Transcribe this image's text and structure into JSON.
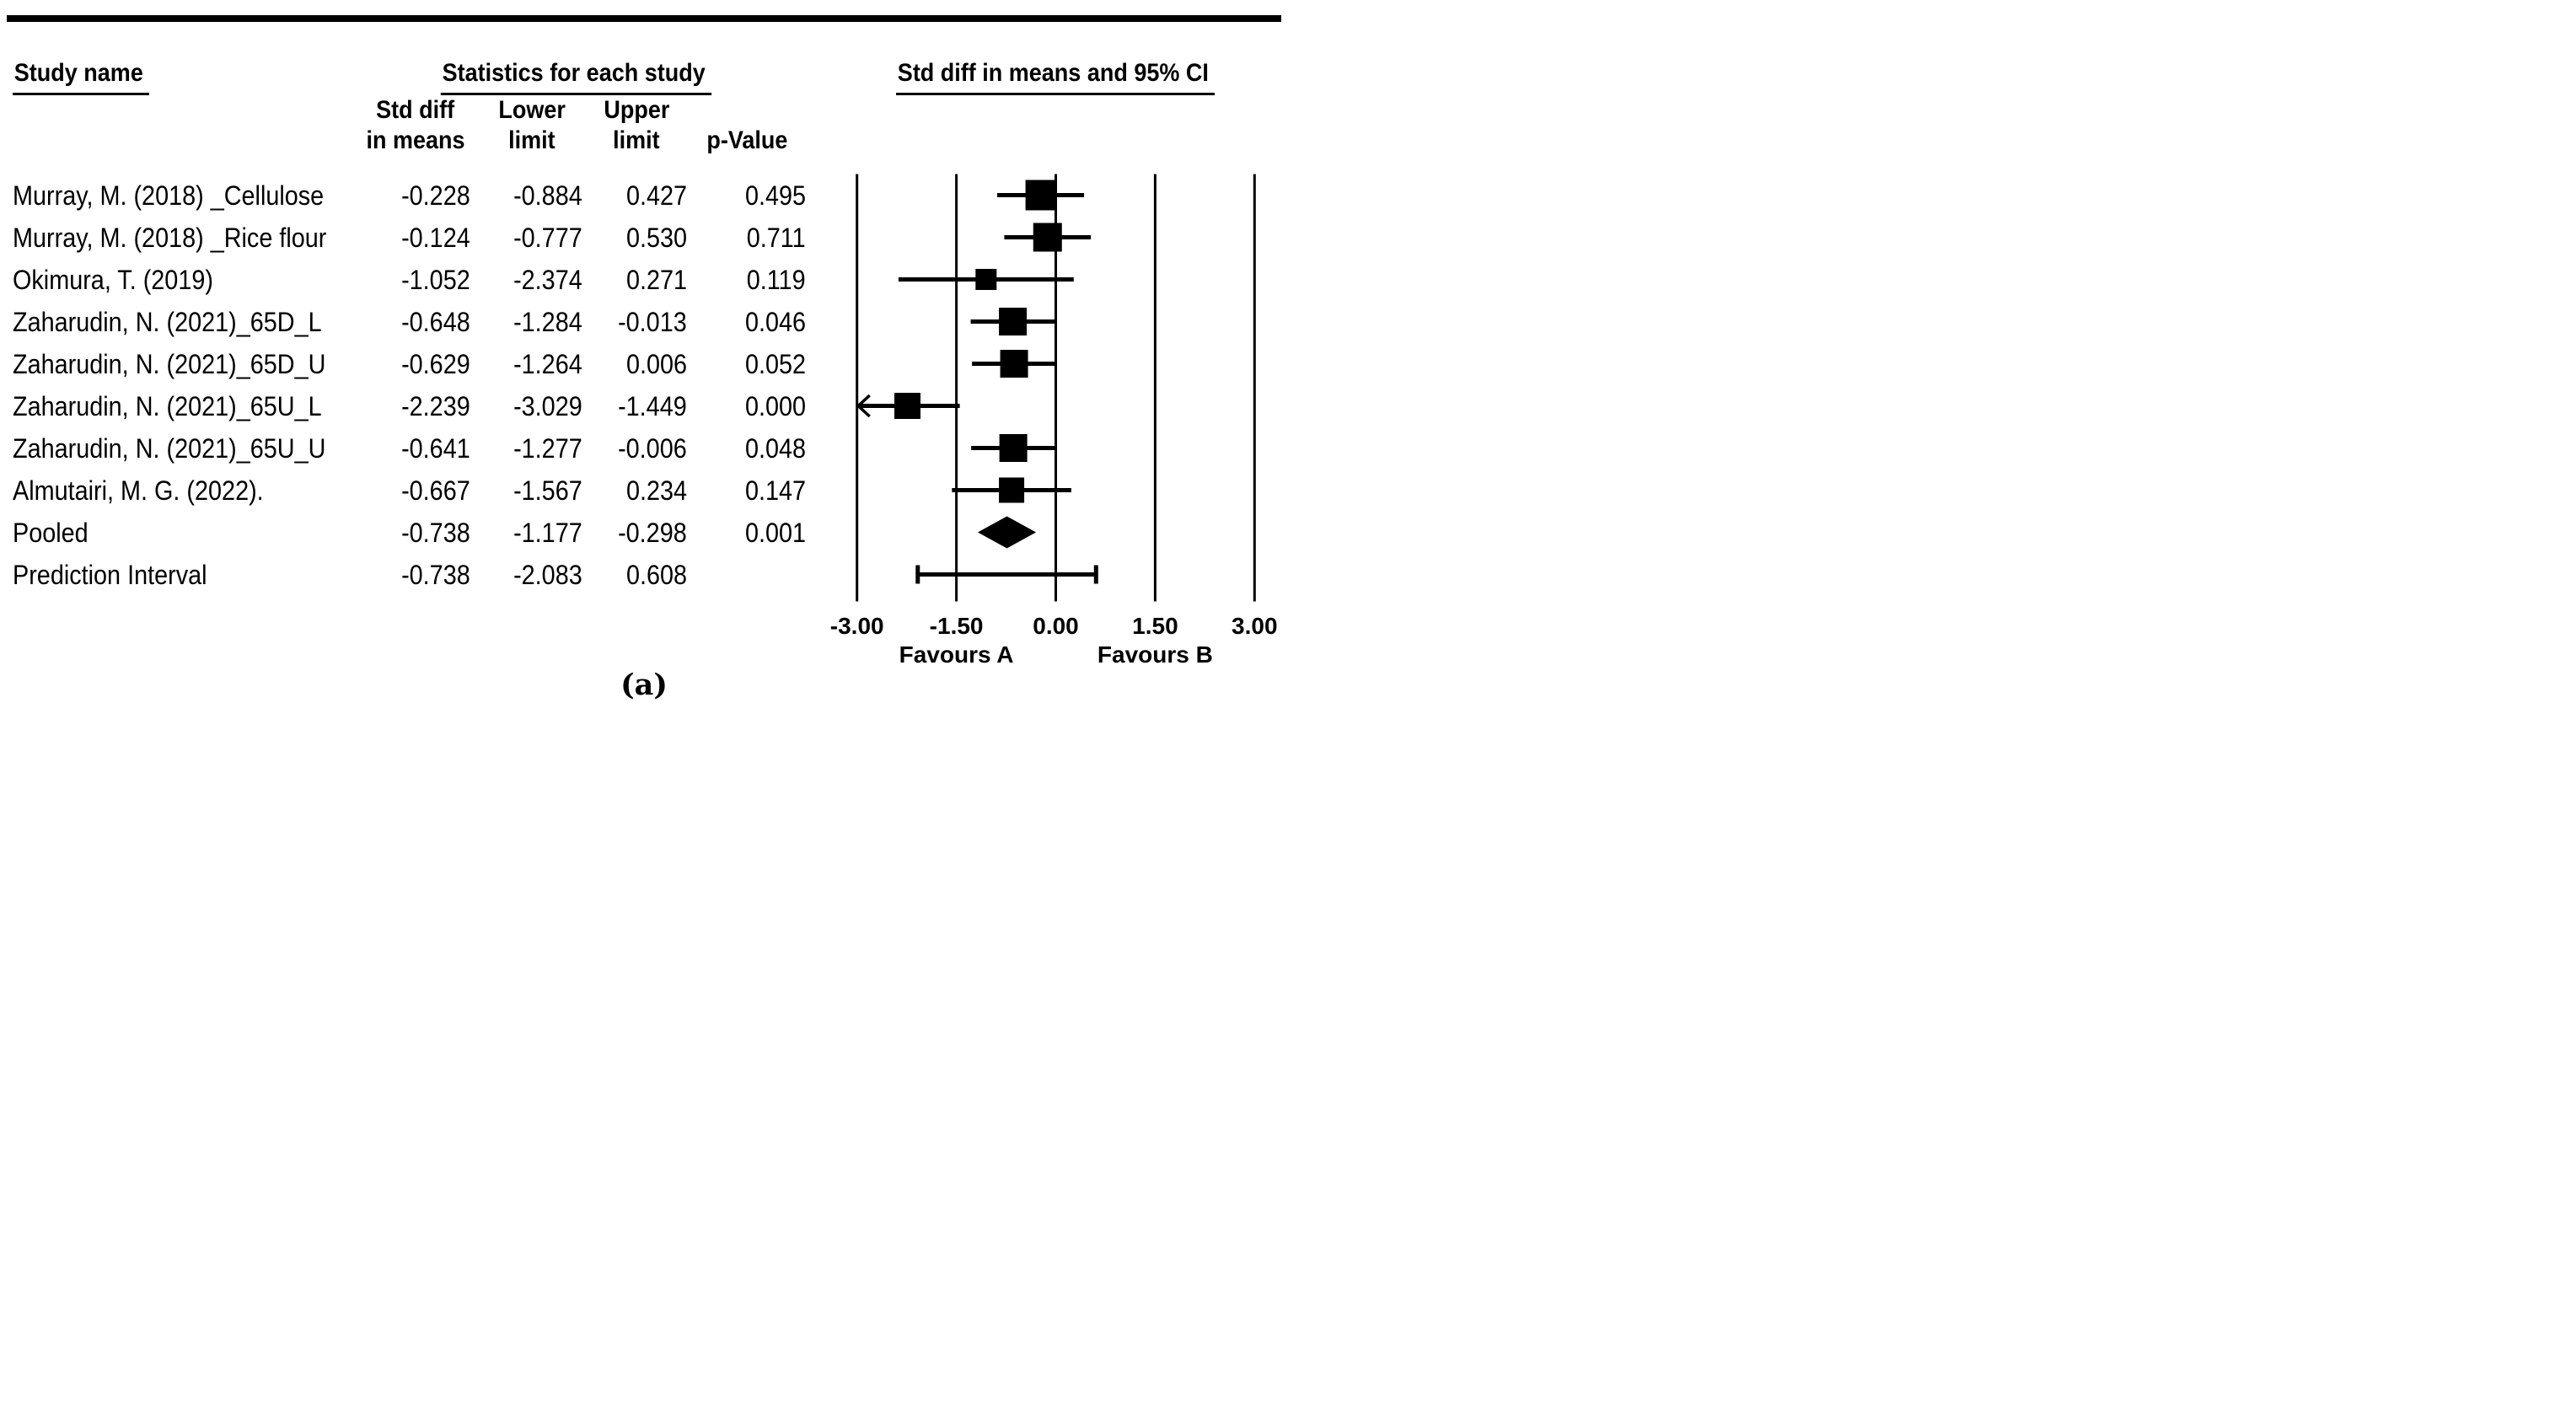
{
  "page": {
    "caption": "(a)"
  },
  "table": {
    "study_name_header": "Study name",
    "stats_header": "Statistics for each study",
    "plot_header": "Std diff in means and 95% CI",
    "columns": {
      "std_diff_line1": "Std diff",
      "std_diff_line2": "in means",
      "lower_line1": "Lower",
      "lower_line2": "limit",
      "upper_line1": "Upper",
      "upper_line2": "limit",
      "p_value": "p-Value"
    }
  },
  "axis": {
    "tick_labels": [
      "-3.00",
      "-1.50",
      "0.00",
      "1.50",
      "3.00"
    ],
    "favours_left": "Favours A",
    "favours_right": "Favours B"
  },
  "chart_data": {
    "type": "forest",
    "title": "Std diff in means and 95% CI",
    "xlim": [
      -3,
      3
    ],
    "xticks": [
      -3.0,
      -1.5,
      0.0,
      1.5,
      3.0
    ],
    "grid": "vertical-reference-lines",
    "xlabel_left": "Favours A",
    "xlabel_right": "Favours B",
    "rows": [
      {
        "name": "Murray, M. (2018) _Cellulose",
        "std_diff": -0.228,
        "lower": -0.884,
        "upper": 0.427,
        "p_value": 0.495,
        "kind": "study",
        "marker_px": 36
      },
      {
        "name": "Murray, M. (2018) _Rice flour",
        "std_diff": -0.124,
        "lower": -0.777,
        "upper": 0.53,
        "p_value": 0.711,
        "kind": "study",
        "marker_px": 34
      },
      {
        "name": "Okimura, T. (2019)",
        "std_diff": -1.052,
        "lower": -2.374,
        "upper": 0.271,
        "p_value": 0.119,
        "kind": "study",
        "marker_px": 25
      },
      {
        "name": "Zaharudin, N. (2021)_65D_L",
        "std_diff": -0.648,
        "lower": -1.284,
        "upper": -0.013,
        "p_value": 0.046,
        "kind": "study",
        "marker_px": 33
      },
      {
        "name": "Zaharudin, N. (2021)_65D_U",
        "std_diff": -0.629,
        "lower": -1.264,
        "upper": 0.006,
        "p_value": 0.052,
        "kind": "study",
        "marker_px": 33
      },
      {
        "name": "Zaharudin, N. (2021)_65U_L",
        "std_diff": -2.239,
        "lower": -3.029,
        "upper": -1.449,
        "p_value": 0.0,
        "kind": "study",
        "marker_px": 31
      },
      {
        "name": "Zaharudin, N. (2021)_65U_U",
        "std_diff": -0.641,
        "lower": -1.277,
        "upper": -0.006,
        "p_value": 0.048,
        "kind": "study",
        "marker_px": 33
      },
      {
        "name": "Almutairi, M. G. (2022).",
        "std_diff": -0.667,
        "lower": -1.567,
        "upper": 0.234,
        "p_value": 0.147,
        "kind": "study",
        "marker_px": 30
      },
      {
        "name": "Pooled",
        "std_diff": -0.738,
        "lower": -1.177,
        "upper": -0.298,
        "p_value": 0.001,
        "kind": "pooled"
      },
      {
        "name": "Prediction Interval",
        "std_diff": -0.738,
        "lower": -2.083,
        "upper": 0.608,
        "p_value": null,
        "kind": "prediction_interval"
      }
    ]
  }
}
